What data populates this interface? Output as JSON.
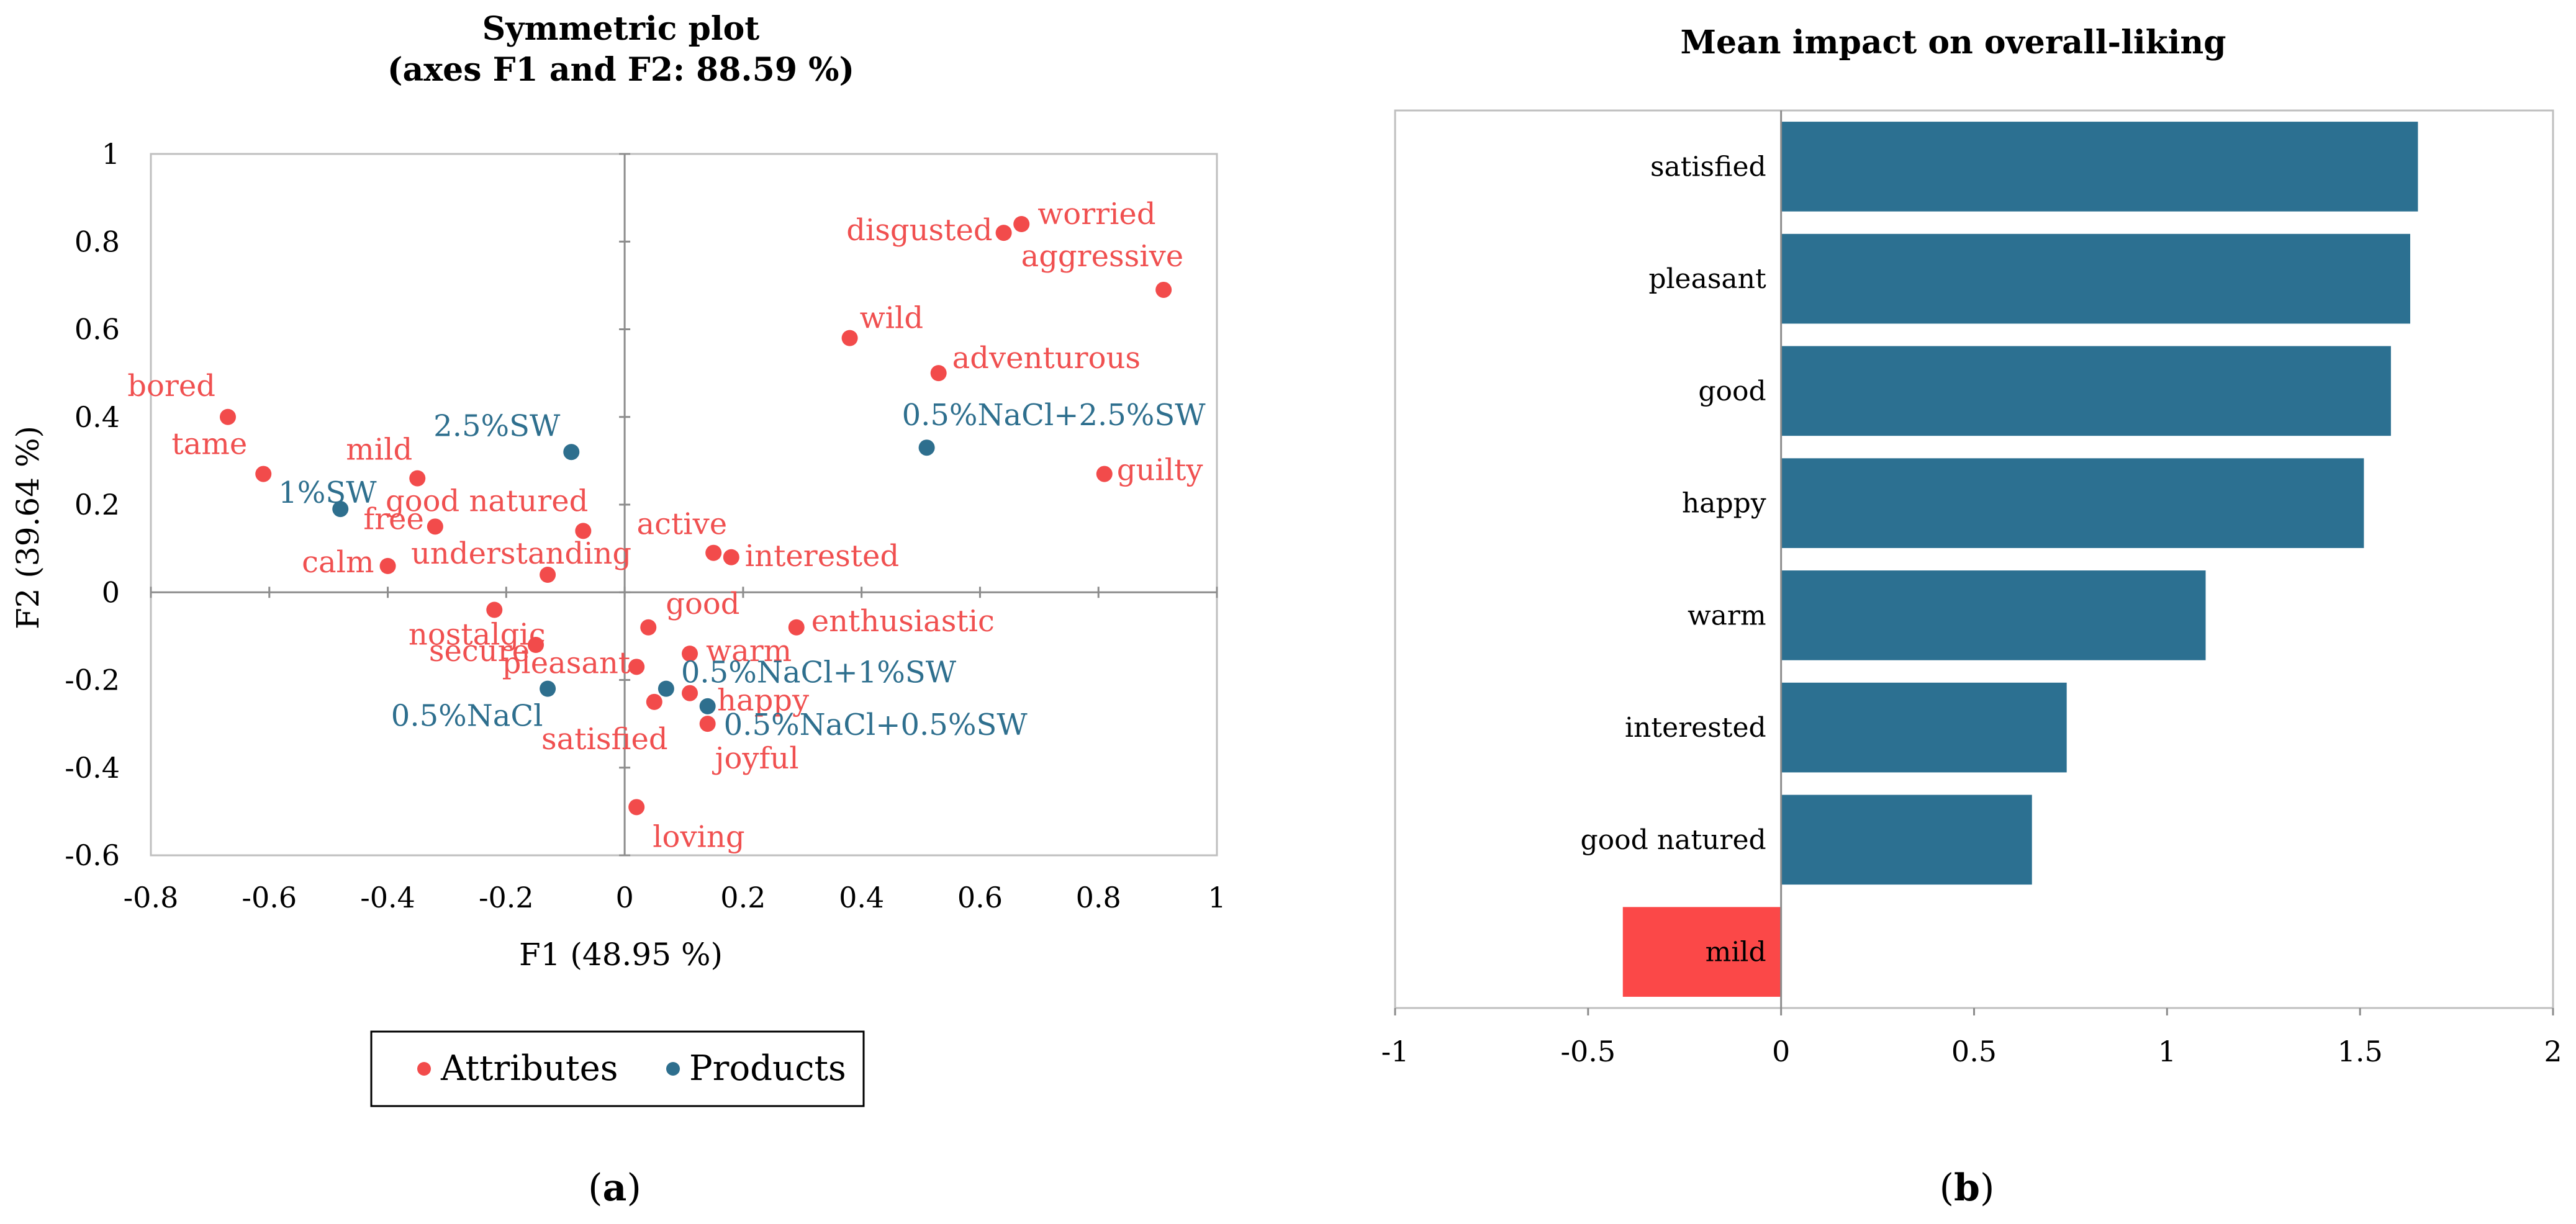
{
  "chart_data": [
    {
      "type": "scatter",
      "title": "Symmetric plot",
      "subtitle": "(axes F1 and F2: 88.59 %)",
      "xlabel": "F1 (48.95 %)",
      "ylabel": "F2 (39.64 %)",
      "xlim": [
        -0.8,
        1
      ],
      "ylim": [
        -0.6,
        1
      ],
      "xticks": [
        "-0.8",
        "-0.6",
        "-0.4",
        "-0.2",
        "0",
        "0.2",
        "0.4",
        "0.6",
        "0.8",
        "1"
      ],
      "yticks": [
        "-0.6",
        "-0.4",
        "-0.2",
        "0",
        "0.2",
        "0.4",
        "0.6",
        "0.8",
        "1"
      ],
      "grid": false,
      "legend": "bottom",
      "panel_tag": {
        "open": "(",
        "letter": "a",
        "close": ")"
      },
      "series": [
        {
          "name": "Attributes",
          "color": "#f24b4b",
          "points": [
            {
              "label": "bored",
              "x": -0.67,
              "y": 0.4
            },
            {
              "label": "tame",
              "x": -0.61,
              "y": 0.27
            },
            {
              "label": "mild",
              "x": -0.35,
              "y": 0.26
            },
            {
              "label": "good natured",
              "x": -0.07,
              "y": 0.14
            },
            {
              "label": "free",
              "x": -0.32,
              "y": 0.15
            },
            {
              "label": "calm",
              "x": -0.4,
              "y": 0.06
            },
            {
              "label": "understanding",
              "x": -0.13,
              "y": 0.04
            },
            {
              "label": "disgusted",
              "x": 0.64,
              "y": 0.82
            },
            {
              "label": "worried",
              "x": 0.67,
              "y": 0.84
            },
            {
              "label": "aggressive",
              "x": 0.91,
              "y": 0.69
            },
            {
              "label": "wild",
              "x": 0.38,
              "y": 0.58
            },
            {
              "label": "adventurous",
              "x": 0.53,
              "y": 0.5
            },
            {
              "label": "guilty",
              "x": 0.81,
              "y": 0.27
            },
            {
              "label": "active",
              "x": 0.15,
              "y": 0.09
            },
            {
              "label": "interested",
              "x": 0.18,
              "y": 0.08
            },
            {
              "label": "good",
              "x": 0.04,
              "y": -0.08
            },
            {
              "label": "enthusiastic",
              "x": 0.29,
              "y": -0.08
            },
            {
              "label": "nostalgic",
              "x": -0.22,
              "y": -0.04
            },
            {
              "label": "pleasant",
              "x": 0.02,
              "y": -0.17
            },
            {
              "label": "warm",
              "x": 0.11,
              "y": -0.14
            },
            {
              "label": "secure",
              "x": -0.15,
              "y": -0.12
            },
            {
              "label": "happy",
              "x": 0.11,
              "y": -0.23
            },
            {
              "label": "satisfied",
              "x": 0.05,
              "y": -0.25
            },
            {
              "label": "joyful",
              "x": 0.14,
              "y": -0.3
            },
            {
              "label": "loving",
              "x": 0.02,
              "y": -0.49
            }
          ]
        },
        {
          "name": "Products",
          "color": "#2e6f8e",
          "points": [
            {
              "label": "2.5%SW",
              "x": -0.09,
              "y": 0.32
            },
            {
              "label": "1%SW",
              "x": -0.48,
              "y": 0.19
            },
            {
              "label": "0.5%NaCl+2.5%SW",
              "x": 0.51,
              "y": 0.33
            },
            {
              "label": "0.5%NaCl+1%SW",
              "x": 0.07,
              "y": -0.22
            },
            {
              "label": "0.5%NaCl",
              "x": -0.13,
              "y": -0.22
            },
            {
              "label": "0.5%NaCl+0.5%SW",
              "x": 0.14,
              "y": -0.26
            }
          ]
        }
      ]
    },
    {
      "type": "bar",
      "orientation": "horizontal",
      "title": "Mean impact on overall-liking",
      "categories": [
        "satisfied",
        "pleasant",
        "good",
        "happy",
        "warm",
        "interested",
        "good natured",
        "mild"
      ],
      "values": [
        1.65,
        1.63,
        1.58,
        1.51,
        1.1,
        0.74,
        0.65,
        -0.41
      ],
      "xlim": [
        -1,
        2
      ],
      "xticks": [
        "-1",
        "-0.5",
        "0",
        "0.5",
        "1",
        "1.5",
        "2"
      ],
      "positive_color": "#2c7091",
      "negative_color": "#fb4848",
      "grid": false,
      "panel_tag": {
        "open": "(",
        "letter": "b",
        "close": ")"
      }
    }
  ]
}
